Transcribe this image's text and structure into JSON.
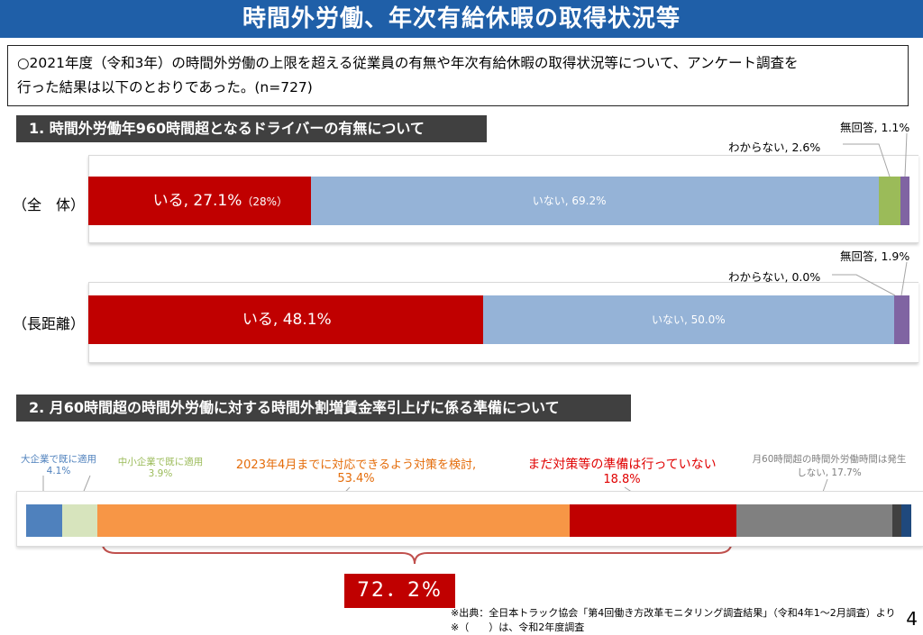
{
  "title": "時間外労働、年次有給休暇の取得状況等",
  "intro": {
    "line1": "○2021年度（令和3年）の時間外労働の上限を超える従業員の有無や年次有給休暇の取得状況等について、アンケート調査を",
    "line2": "行った結果は以下のとおりであった。(n=727)"
  },
  "section1": {
    "heading": "1. 時間外労働年960時間超となるドライバーの有無について"
  },
  "section2": {
    "heading": "2. 月60時間超の時間外労働に対する時間外割増賃金率引上げに係る準備について"
  },
  "colors": {
    "red": "#c00000",
    "lightblue": "#95b3d7",
    "green": "#9bbb59",
    "purple": "#8064a2",
    "blue": "#4f81bd",
    "palegreen": "#d7e4bd",
    "orange": "#f79646",
    "gray": "#808080",
    "darkgray": "#404040",
    "navy": "#1f497d"
  },
  "chart_data": [
    {
      "type": "bar",
      "orientation": "horizontal-stacked-100",
      "rows": [
        {
          "label": "（全　体）",
          "segments": [
            {
              "name": "いる",
              "value": 27.1,
              "label": "いる, 27.1%",
              "prev": "（28%）",
              "color": "red"
            },
            {
              "name": "いない",
              "value": 69.2,
              "label": "いない, 69.2%",
              "color": "lightblue"
            },
            {
              "name": "わからない",
              "value": 2.6,
              "label": "わからない, 2.6%",
              "color": "green"
            },
            {
              "name": "無回答",
              "value": 1.1,
              "label": "無回答, 1.1%",
              "color": "purple"
            }
          ]
        },
        {
          "label": "（長距離）",
          "segments": [
            {
              "name": "いる",
              "value": 48.1,
              "label": "いる, 48.1%",
              "color": "red"
            },
            {
              "name": "いない",
              "value": 50.0,
              "label": "いない, 50.0%",
              "color": "lightblue"
            },
            {
              "name": "わからない",
              "value": 0.0,
              "label": "わからない, 0.0%",
              "color": "green"
            },
            {
              "name": "無回答",
              "value": 1.9,
              "label": "無回答, 1.9%",
              "color": "purple"
            }
          ]
        }
      ]
    },
    {
      "type": "bar",
      "orientation": "horizontal-stacked-100",
      "segments": [
        {
          "name": "大企業で既に適用",
          "value": 4.1,
          "l1": "大企業で既に適用",
          "l2": "4.1%",
          "color": "blue",
          "text_color": "#4f81bd"
        },
        {
          "name": "中小企業で既に適用",
          "value": 3.9,
          "l1": "中小企業で既に適用",
          "l2": "3.9%",
          "color": "palegreen",
          "text_color": "#9bbb59"
        },
        {
          "name": "2023年4月までに対応できるよう対策を検討",
          "value": 53.4,
          "l1": "2023年4月までに対応できるよう対策を検討,",
          "l2": "53.4%",
          "color": "orange",
          "text_color": "#e46c0a"
        },
        {
          "name": "まだ対策等の準備は行っていない",
          "value": 18.8,
          "l1": "まだ対策等の準備は行っていない",
          "l2": "18.8%",
          "color": "red",
          "text_color": "#e00000"
        },
        {
          "name": "月60時間超の時間外労働時間は発生しない",
          "value": 17.7,
          "l1": "月60時間超の時間外労働時間は発生",
          "l2": "しない, 17.7%",
          "color": "gray",
          "text_color": "#808080"
        },
        {
          "name": "(unlabeled)",
          "value": 1.0,
          "color": "darkgray"
        },
        {
          "name": "(unlabeled)",
          "value": 1.1,
          "color": "navy"
        }
      ],
      "bracket_total": "72．2%"
    }
  ],
  "footer": {
    "source1": "※出典：全日本トラック協会「第4回働き方改革モニタリング調査結果」（令和4年1～2月調査）より",
    "source2": "※（　　）は、令和2年度調査",
    "page": "4"
  }
}
